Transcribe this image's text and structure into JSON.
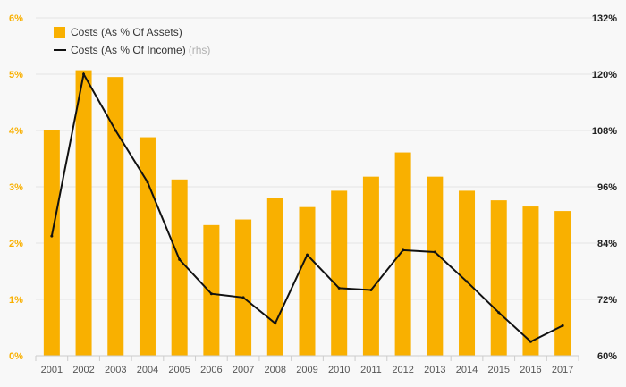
{
  "chart_data": {
    "type": "bar",
    "categories": [
      "2001",
      "2002",
      "2003",
      "2004",
      "2005",
      "2006",
      "2007",
      "2008",
      "2009",
      "2010",
      "2011",
      "2012",
      "2013",
      "2014",
      "2015",
      "2016",
      "2017"
    ],
    "series": [
      {
        "name": "Costs (As % Of Assets)",
        "type": "bar",
        "axis": "left",
        "values": [
          4.0,
          5.07,
          4.95,
          3.88,
          3.13,
          2.32,
          2.42,
          2.8,
          2.64,
          2.93,
          3.18,
          3.61,
          3.18,
          2.93,
          2.76,
          2.65,
          2.57
        ],
        "color": "#f9b000"
      },
      {
        "name": "Costs (As % Of Income)",
        "type": "line",
        "axis": "right",
        "values": [
          85.5,
          120,
          108,
          97,
          80.5,
          73.2,
          72.4,
          66.9,
          81.5,
          74.4,
          74,
          82.5,
          82.1,
          75.8,
          69.2,
          63,
          66.4
        ],
        "color": "#111111"
      }
    ],
    "legend_suffix": "(rhs)",
    "left_axis": {
      "min": 0,
      "max": 6,
      "ticks": [
        "0%",
        "1%",
        "2%",
        "3%",
        "4%",
        "5%",
        "6%"
      ],
      "color": "#f9b000"
    },
    "right_axis": {
      "min": 60,
      "max": 132,
      "ticks": [
        "60%",
        "72%",
        "84%",
        "96%",
        "108%",
        "120%",
        "132%"
      ],
      "color": "#222222"
    },
    "grid": true,
    "legend_position": "top-left"
  }
}
